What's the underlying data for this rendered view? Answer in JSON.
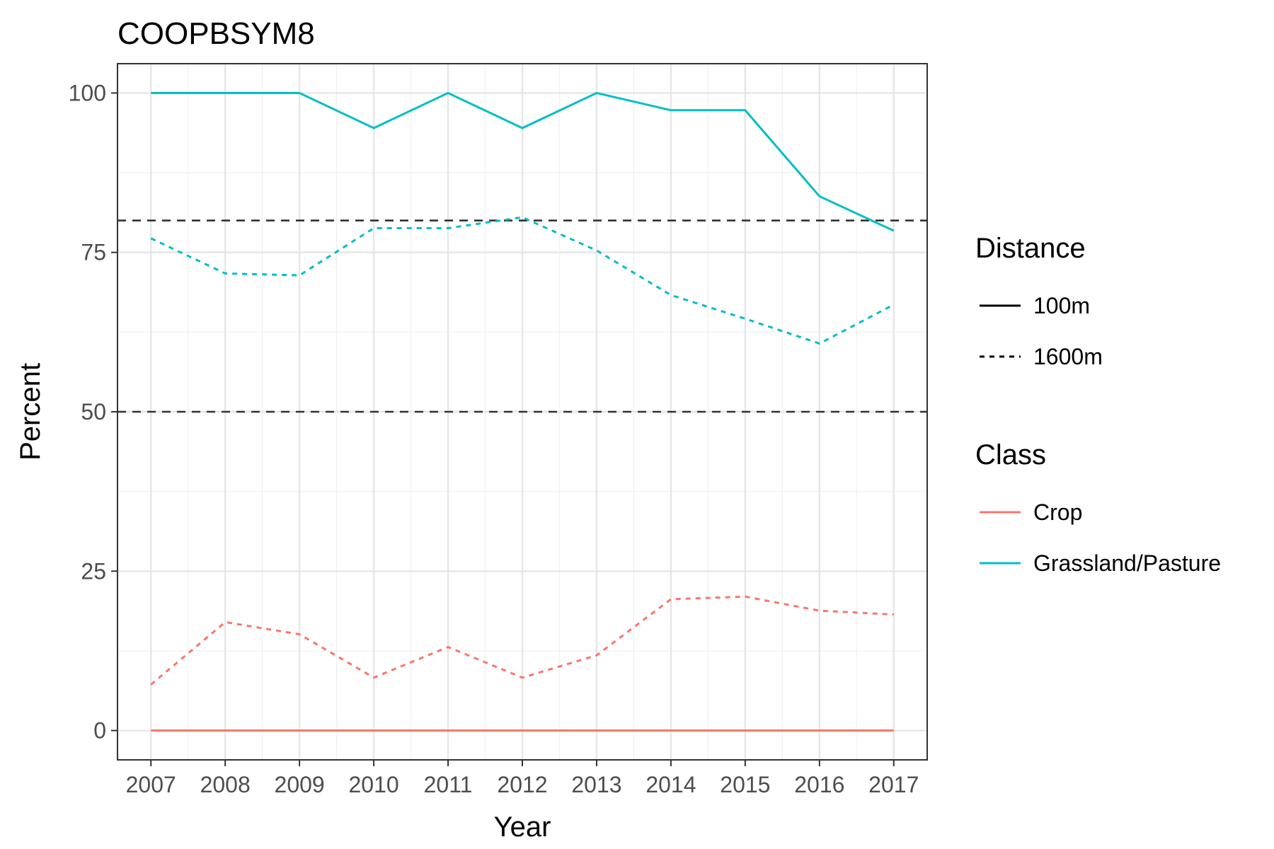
{
  "chart_data": {
    "type": "line",
    "title": "COOPBSYM8",
    "xlabel": "Year",
    "ylabel": "Percent",
    "x": [
      2007,
      2008,
      2009,
      2010,
      2011,
      2012,
      2013,
      2014,
      2015,
      2016,
      2017
    ],
    "xlim": [
      2006.55,
      2017.45
    ],
    "ylim": [
      -4.6,
      104.6
    ],
    "yticks": [
      0,
      25,
      50,
      75,
      100
    ],
    "grid": true,
    "reference_lines": [
      {
        "y": 50,
        "style": "dashed",
        "color": "#333333"
      },
      {
        "y": 80,
        "style": "dashed",
        "color": "#333333"
      }
    ],
    "series": [
      {
        "class": "Grassland/Pasture",
        "distance": "100m",
        "color": "#00BFC4",
        "dash": "solid",
        "values": [
          100,
          100,
          100,
          94.5,
          100,
          94.5,
          100,
          97.3,
          97.3,
          83.8,
          78.4
        ]
      },
      {
        "class": "Grassland/Pasture",
        "distance": "1600m",
        "color": "#00BFC4",
        "dash": "dashed",
        "values": [
          77.2,
          71.7,
          71.4,
          78.8,
          78.8,
          80.5,
          75.3,
          68.3,
          64.6,
          60.7,
          66.8
        ]
      },
      {
        "class": "Crop",
        "distance": "100m",
        "color": "#F8766D",
        "dash": "solid",
        "values": [
          0,
          0,
          0,
          0,
          0,
          0,
          0,
          0,
          0,
          0,
          0
        ]
      },
      {
        "class": "Crop",
        "distance": "1600m",
        "color": "#F8766D",
        "dash": "dashed",
        "values": [
          7.2,
          17.0,
          15.1,
          8.3,
          13.1,
          8.3,
          11.8,
          20.6,
          21.0,
          18.8,
          18.2
        ]
      }
    ],
    "legend": {
      "placement": "right",
      "groups": [
        {
          "title": "Distance",
          "entries": [
            {
              "label": "100m",
              "dash": "solid",
              "color": "#000000"
            },
            {
              "label": "1600m",
              "dash": "dashed",
              "color": "#000000"
            }
          ]
        },
        {
          "title": "Class",
          "entries": [
            {
              "label": "Crop",
              "dash": "solid",
              "color": "#F8766D"
            },
            {
              "label": "Grassland/Pasture",
              "dash": "solid",
              "color": "#00BFC4"
            }
          ]
        }
      ]
    }
  }
}
